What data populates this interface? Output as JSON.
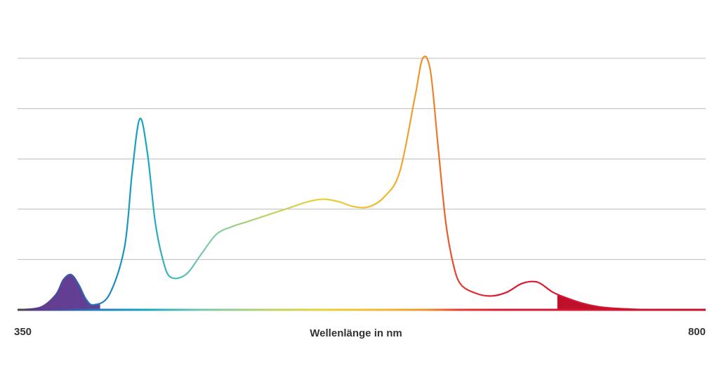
{
  "chart_data": {
    "type": "area",
    "title": "",
    "xlabel": "Wellenlänge in nm",
    "ylabel": "",
    "xlim": [
      350,
      800
    ],
    "ylim": [
      0,
      1
    ],
    "grid": true,
    "x_tick_labels": [
      "350",
      "800"
    ],
    "series": [
      {
        "x": [
          350,
          365,
          375,
          380,
          385,
          390,
          395,
          400,
          410,
          420,
          425,
          430,
          435,
          440,
          445,
          450,
          460,
          470,
          480,
          490,
          500,
          510,
          520,
          530,
          540,
          550,
          560,
          570,
          580,
          590,
          600,
          610,
          615,
          620,
          625,
          630,
          635,
          640,
          650,
          660,
          670,
          680,
          690,
          700,
          710,
          720,
          730,
          740,
          750,
          760,
          770,
          780,
          790,
          800
        ],
        "values": [
          0.0,
          0.01,
          0.06,
          0.12,
          0.14,
          0.1,
          0.04,
          0.02,
          0.06,
          0.25,
          0.55,
          0.76,
          0.62,
          0.35,
          0.2,
          0.13,
          0.14,
          0.22,
          0.3,
          0.33,
          0.35,
          0.37,
          0.39,
          0.41,
          0.43,
          0.44,
          0.43,
          0.41,
          0.41,
          0.45,
          0.55,
          0.85,
          1.0,
          0.95,
          0.65,
          0.35,
          0.18,
          0.1,
          0.065,
          0.055,
          0.07,
          0.105,
          0.11,
          0.07,
          0.045,
          0.025,
          0.012,
          0.006,
          0.003,
          0.001,
          0.0005,
          0.0003,
          0.0001,
          0.0
        ]
      }
    ]
  }
}
